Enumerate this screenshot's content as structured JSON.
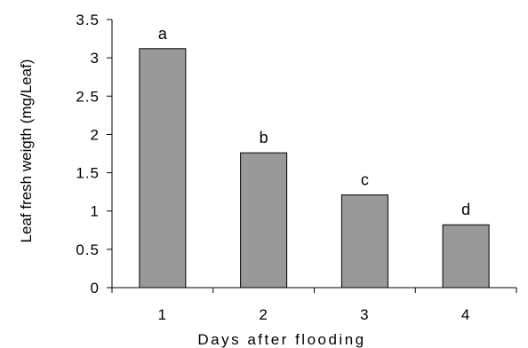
{
  "chart_data": {
    "type": "bar",
    "categories": [
      "1",
      "2",
      "3",
      "4"
    ],
    "values": [
      3.12,
      1.76,
      1.21,
      0.82
    ],
    "data_labels": [
      "a",
      "b",
      "c",
      "d"
    ],
    "xlabel": "Days after flooding",
    "ylabel": "Leaf fresh weigth (mg/Leaf)",
    "ylim": [
      0,
      3.5
    ],
    "yticks": [
      "0",
      "0.5",
      "1",
      "1.5",
      "2",
      "2.5",
      "3",
      "3.5"
    ],
    "grid": false,
    "legend": "none",
    "colors": {
      "bar_fill": "#999999",
      "bar_stroke": "#000000",
      "axis": "#000000"
    }
  }
}
